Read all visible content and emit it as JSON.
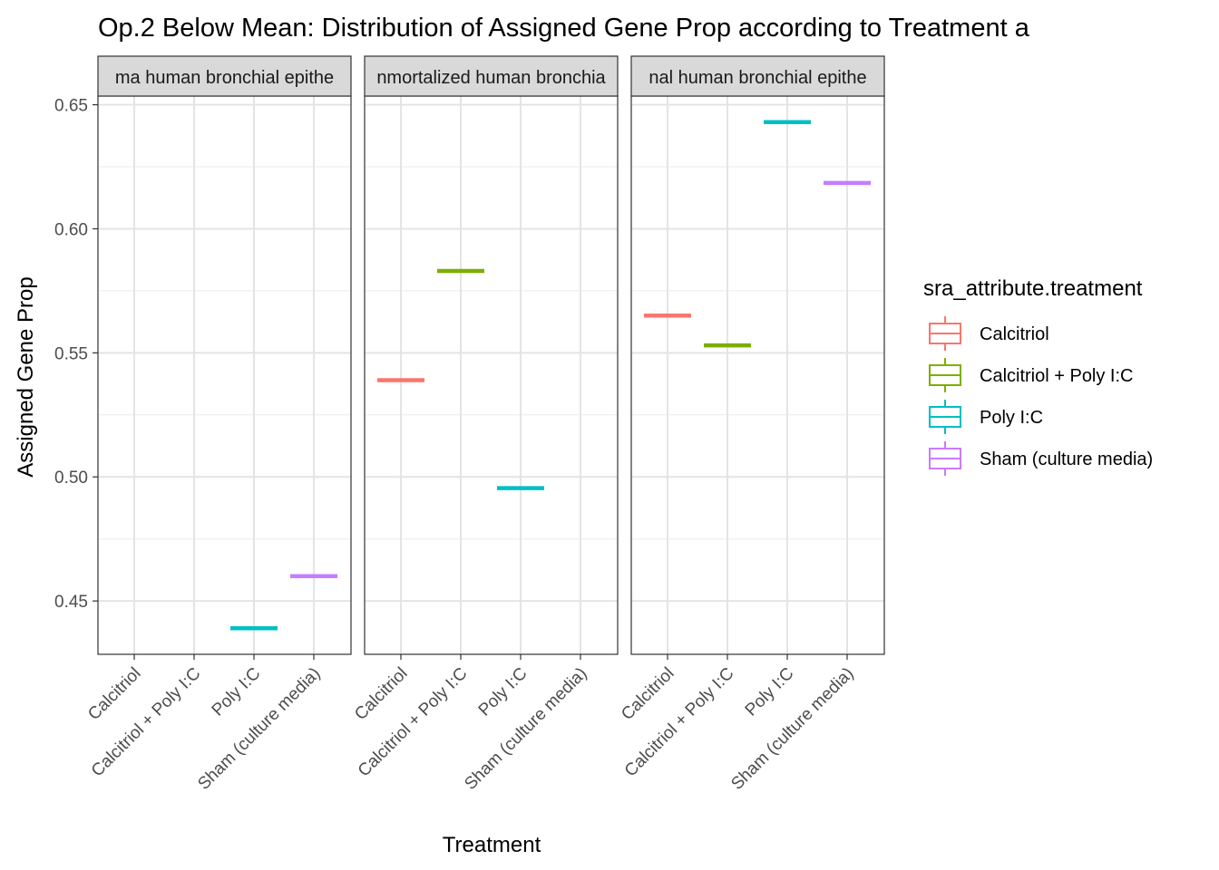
{
  "chart_data": {
    "type": "box",
    "title": "Op.2 Below Mean: Distribution of Assigned Gene Prop according to Treatment a",
    "xlabel": "Treatment",
    "ylabel": "Assigned Gene Prop",
    "ylim": [
      0.4285,
      0.6535
    ],
    "yticks": [
      0.45,
      0.5,
      0.55,
      0.6,
      0.65
    ],
    "ytick_labels": [
      "0.45",
      "0.50",
      "0.55",
      "0.60",
      "0.65"
    ],
    "categories": [
      "Calcitriol",
      "Calcitriol + Poly I:C",
      "Poly I:C",
      "Sham (culture media)"
    ],
    "grid": true,
    "legend": {
      "title": "sra_attribute.treatment",
      "placement": "right",
      "entries": [
        "Calcitriol",
        "Calcitriol + Poly I:C",
        "Poly I:C",
        "Sham (culture media)"
      ]
    },
    "colors": {
      "Calcitriol": "#F8766D",
      "Calcitriol + Poly I:C": "#7CAE00",
      "Poly I:C": "#00BFC4",
      "Sham (culture media)": "#C77CFF"
    },
    "panels": [
      {
        "strip": "ma human bronchial epithe",
        "values": [
          {
            "category": "Poly I:C",
            "y": 0.439
          },
          {
            "category": "Sham (culture media)",
            "y": 0.46
          }
        ]
      },
      {
        "strip": "nmortalized human bronchia",
        "values": [
          {
            "category": "Calcitriol",
            "y": 0.539
          },
          {
            "category": "Calcitriol + Poly I:C",
            "y": 0.583
          },
          {
            "category": "Poly I:C",
            "y": 0.4955
          }
        ]
      },
      {
        "strip": "nal human bronchial epithe",
        "values": [
          {
            "category": "Calcitriol",
            "y": 0.565
          },
          {
            "category": "Calcitriol + Poly I:C",
            "y": 0.553
          },
          {
            "category": "Poly I:C",
            "y": 0.643
          },
          {
            "category": "Sham (culture media)",
            "y": 0.6185
          }
        ]
      }
    ]
  }
}
